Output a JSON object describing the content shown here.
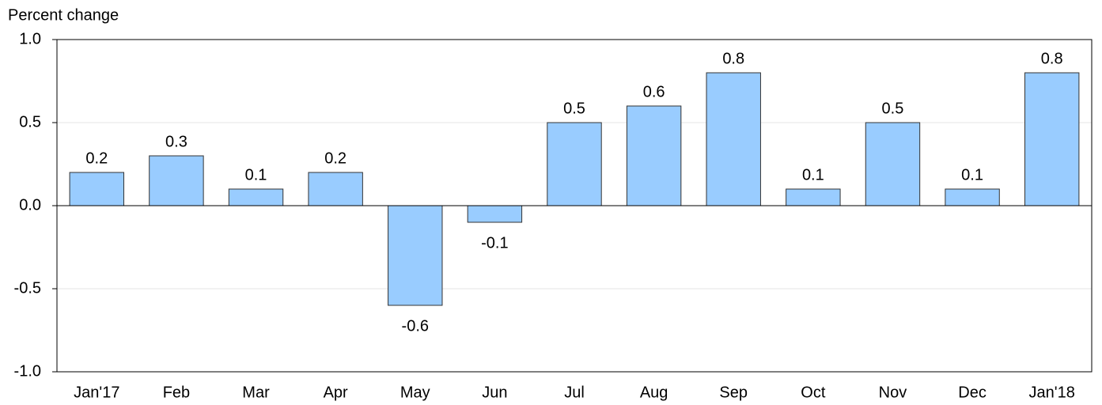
{
  "chart_data": {
    "type": "bar",
    "y_label": "Percent change",
    "categories": [
      "Jan'17",
      "Feb",
      "Mar",
      "Apr",
      "May",
      "Jun",
      "Jul",
      "Aug",
      "Sep",
      "Oct",
      "Nov",
      "Dec",
      "Jan'18"
    ],
    "values": [
      0.2,
      0.3,
      0.1,
      0.2,
      -0.6,
      -0.1,
      0.5,
      0.6,
      0.8,
      0.1,
      0.5,
      0.1,
      0.8
    ],
    "color": "#99ccff",
    "ylim": [
      -1.0,
      1.0
    ],
    "yticks": [
      {
        "value": -1.0,
        "label": "-1.0"
      },
      -0.5,
      {
        "value": 0.0,
        "label": "0.0"
      },
      0.5,
      {
        "value": 1.0,
        "label": "1.0"
      }
    ],
    "grid": true
  }
}
